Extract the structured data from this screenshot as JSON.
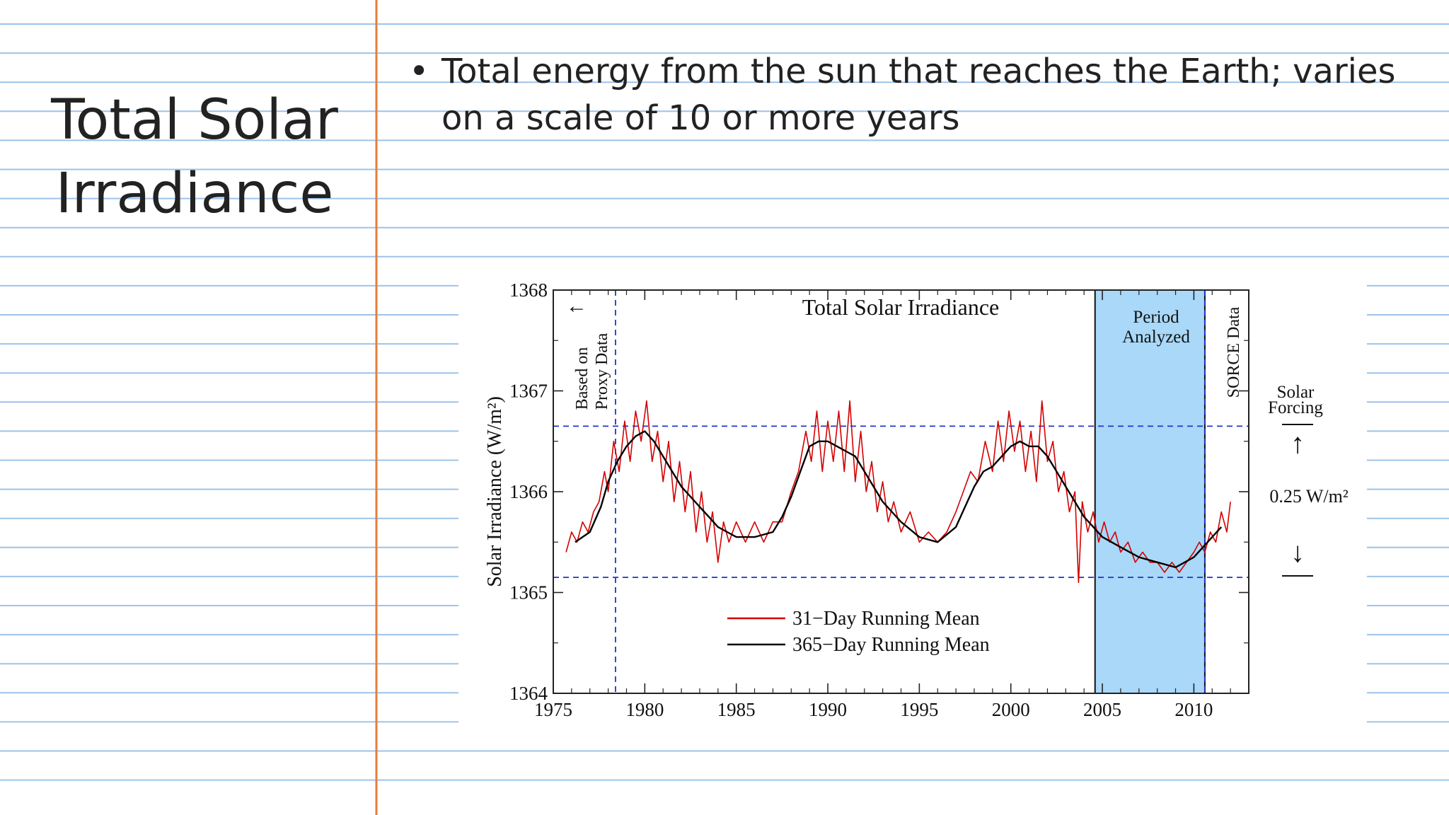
{
  "slide": {
    "title_line1": "Total Solar",
    "title_line2": "Irradiance",
    "bullet": "Total energy from the sun that reaches the Earth; varies on a scale of 10 or more years"
  },
  "colors": {
    "ruled_line": "#9ec3ea",
    "margin_line": "#e67e3c",
    "series_31day": "#d40000",
    "series_365day": "#000000",
    "period_fill": "#a9d8f8",
    "reference_dash": "#2233cc"
  },
  "chart_data": {
    "type": "line",
    "title": "Total Solar Irradiance",
    "xlabel": "",
    "ylabel": "Solar Irradiance (W/m²)",
    "xlim": [
      1975,
      2013
    ],
    "ylim": [
      1364,
      1368
    ],
    "x_ticks": [
      1975,
      1980,
      1985,
      1990,
      1995,
      2000,
      2005,
      2010
    ],
    "y_ticks": [
      1364,
      1365,
      1366,
      1367,
      1368
    ],
    "grid": false,
    "legend_position": "bottom-center",
    "series": [
      {
        "name": "31−Day Running Mean",
        "color": "#d40000",
        "points": [
          [
            1975.7,
            1365.4
          ],
          [
            1976.0,
            1365.6
          ],
          [
            1976.3,
            1365.5
          ],
          [
            1976.6,
            1365.7
          ],
          [
            1976.9,
            1365.6
          ],
          [
            1977.2,
            1365.8
          ],
          [
            1977.5,
            1365.9
          ],
          [
            1977.8,
            1366.2
          ],
          [
            1978.0,
            1366.0
          ],
          [
            1978.3,
            1366.5
          ],
          [
            1978.6,
            1366.2
          ],
          [
            1978.9,
            1366.7
          ],
          [
            1979.2,
            1366.3
          ],
          [
            1979.5,
            1366.8
          ],
          [
            1979.8,
            1366.5
          ],
          [
            1980.1,
            1366.9
          ],
          [
            1980.4,
            1366.3
          ],
          [
            1980.7,
            1366.6
          ],
          [
            1981.0,
            1366.1
          ],
          [
            1981.3,
            1366.5
          ],
          [
            1981.6,
            1365.9
          ],
          [
            1981.9,
            1366.3
          ],
          [
            1982.2,
            1365.8
          ],
          [
            1982.5,
            1366.2
          ],
          [
            1982.8,
            1365.6
          ],
          [
            1983.1,
            1366.0
          ],
          [
            1983.4,
            1365.5
          ],
          [
            1983.7,
            1365.8
          ],
          [
            1984.0,
            1365.3
          ],
          [
            1984.3,
            1365.7
          ],
          [
            1984.6,
            1365.5
          ],
          [
            1985.0,
            1365.7
          ],
          [
            1985.5,
            1365.5
          ],
          [
            1986.0,
            1365.7
          ],
          [
            1986.5,
            1365.5
          ],
          [
            1987.0,
            1365.7
          ],
          [
            1987.5,
            1365.7
          ],
          [
            1988.0,
            1366.0
          ],
          [
            1988.4,
            1366.2
          ],
          [
            1988.8,
            1366.6
          ],
          [
            1989.1,
            1366.3
          ],
          [
            1989.4,
            1366.8
          ],
          [
            1989.7,
            1366.2
          ],
          [
            1990.0,
            1366.7
          ],
          [
            1990.3,
            1366.3
          ],
          [
            1990.6,
            1366.8
          ],
          [
            1990.9,
            1366.2
          ],
          [
            1991.2,
            1366.9
          ],
          [
            1991.5,
            1366.1
          ],
          [
            1991.8,
            1366.6
          ],
          [
            1992.1,
            1366.0
          ],
          [
            1992.4,
            1366.3
          ],
          [
            1992.7,
            1365.8
          ],
          [
            1993.0,
            1366.1
          ],
          [
            1993.3,
            1365.7
          ],
          [
            1993.6,
            1365.9
          ],
          [
            1994.0,
            1365.6
          ],
          [
            1994.5,
            1365.8
          ],
          [
            1995.0,
            1365.5
          ],
          [
            1995.5,
            1365.6
          ],
          [
            1996.0,
            1365.5
          ],
          [
            1996.5,
            1365.6
          ],
          [
            1997.0,
            1365.8
          ],
          [
            1997.4,
            1366.0
          ],
          [
            1997.8,
            1366.2
          ],
          [
            1998.2,
            1366.1
          ],
          [
            1998.6,
            1366.5
          ],
          [
            1999.0,
            1366.2
          ],
          [
            1999.3,
            1366.7
          ],
          [
            1999.6,
            1366.3
          ],
          [
            1999.9,
            1366.8
          ],
          [
            2000.2,
            1366.4
          ],
          [
            2000.5,
            1366.7
          ],
          [
            2000.8,
            1366.2
          ],
          [
            2001.1,
            1366.6
          ],
          [
            2001.4,
            1366.1
          ],
          [
            2001.7,
            1366.9
          ],
          [
            2002.0,
            1366.3
          ],
          [
            2002.3,
            1366.5
          ],
          [
            2002.6,
            1366.0
          ],
          [
            2002.9,
            1366.2
          ],
          [
            2003.2,
            1365.8
          ],
          [
            2003.5,
            1366.0
          ],
          [
            2003.7,
            1365.1
          ],
          [
            2003.9,
            1365.9
          ],
          [
            2004.2,
            1365.6
          ],
          [
            2004.5,
            1365.8
          ],
          [
            2004.8,
            1365.5
          ],
          [
            2005.1,
            1365.7
          ],
          [
            2005.4,
            1365.5
          ],
          [
            2005.7,
            1365.6
          ],
          [
            2006.0,
            1365.4
          ],
          [
            2006.4,
            1365.5
          ],
          [
            2006.8,
            1365.3
          ],
          [
            2007.2,
            1365.4
          ],
          [
            2007.6,
            1365.3
          ],
          [
            2008.0,
            1365.3
          ],
          [
            2008.4,
            1365.2
          ],
          [
            2008.8,
            1365.3
          ],
          [
            2009.2,
            1365.2
          ],
          [
            2009.6,
            1365.3
          ],
          [
            2010.0,
            1365.4
          ],
          [
            2010.3,
            1365.5
          ],
          [
            2010.6,
            1365.4
          ],
          [
            2010.9,
            1365.6
          ],
          [
            2011.2,
            1365.5
          ],
          [
            2011.5,
            1365.8
          ],
          [
            2011.8,
            1365.6
          ],
          [
            2012.0,
            1365.9
          ]
        ]
      },
      {
        "name": "365−Day Running Mean",
        "color": "#000000",
        "points": [
          [
            1976.2,
            1365.5
          ],
          [
            1977.0,
            1365.6
          ],
          [
            1977.6,
            1365.85
          ],
          [
            1978.0,
            1366.1
          ],
          [
            1978.5,
            1366.3
          ],
          [
            1979.0,
            1366.45
          ],
          [
            1979.5,
            1366.55
          ],
          [
            1980.0,
            1366.6
          ],
          [
            1980.5,
            1366.5
          ],
          [
            1981.0,
            1366.35
          ],
          [
            1981.5,
            1366.2
          ],
          [
            1982.0,
            1366.05
          ],
          [
            1982.5,
            1365.95
          ],
          [
            1983.0,
            1365.85
          ],
          [
            1983.5,
            1365.75
          ],
          [
            1984.0,
            1365.65
          ],
          [
            1984.5,
            1365.6
          ],
          [
            1985.0,
            1365.55
          ],
          [
            1986.0,
            1365.55
          ],
          [
            1987.0,
            1365.6
          ],
          [
            1987.5,
            1365.75
          ],
          [
            1988.0,
            1365.95
          ],
          [
            1988.5,
            1366.2
          ],
          [
            1989.0,
            1366.45
          ],
          [
            1989.5,
            1366.5
          ],
          [
            1990.0,
            1366.5
          ],
          [
            1990.5,
            1366.45
          ],
          [
            1991.0,
            1366.4
          ],
          [
            1991.5,
            1366.35
          ],
          [
            1992.0,
            1366.2
          ],
          [
            1992.5,
            1366.05
          ],
          [
            1993.0,
            1365.9
          ],
          [
            1993.5,
            1365.8
          ],
          [
            1994.0,
            1365.7
          ],
          [
            1995.0,
            1365.55
          ],
          [
            1996.0,
            1365.5
          ],
          [
            1997.0,
            1365.65
          ],
          [
            1997.5,
            1365.85
          ],
          [
            1998.0,
            1366.05
          ],
          [
            1998.5,
            1366.2
          ],
          [
            1999.0,
            1366.25
          ],
          [
            1999.5,
            1366.35
          ],
          [
            2000.0,
            1366.45
          ],
          [
            2000.5,
            1366.5
          ],
          [
            2001.0,
            1366.45
          ],
          [
            2001.5,
            1366.45
          ],
          [
            2002.0,
            1366.35
          ],
          [
            2002.5,
            1366.2
          ],
          [
            2003.0,
            1366.05
          ],
          [
            2003.5,
            1365.9
          ],
          [
            2004.0,
            1365.75
          ],
          [
            2005.0,
            1365.55
          ],
          [
            2006.0,
            1365.45
          ],
          [
            2007.0,
            1365.35
          ],
          [
            2008.0,
            1365.3
          ],
          [
            2009.0,
            1365.25
          ],
          [
            2009.5,
            1365.3
          ],
          [
            2010.0,
            1365.35
          ],
          [
            2010.5,
            1365.45
          ],
          [
            2011.0,
            1365.55
          ],
          [
            2011.5,
            1365.65
          ]
        ]
      }
    ],
    "reference_lines": {
      "y_dashed": [
        1366.65,
        1365.15
      ],
      "x_dashed": [
        1978.4,
        2010.6
      ]
    },
    "shaded_region": {
      "x": [
        2004.6,
        2010.6
      ],
      "label_line1": "Period",
      "label_line2": "Analyzed"
    },
    "annotations": {
      "proxy_line1": "Based on",
      "proxy_line2": "Proxy Data",
      "sorce": "SORCE Data",
      "forcing_line1": "Solar",
      "forcing_line2": "Forcing",
      "forcing_value": "0.25 W/m²",
      "arrow_up": "↑",
      "arrow_down": "↓",
      "arrow_left": "←"
    }
  }
}
